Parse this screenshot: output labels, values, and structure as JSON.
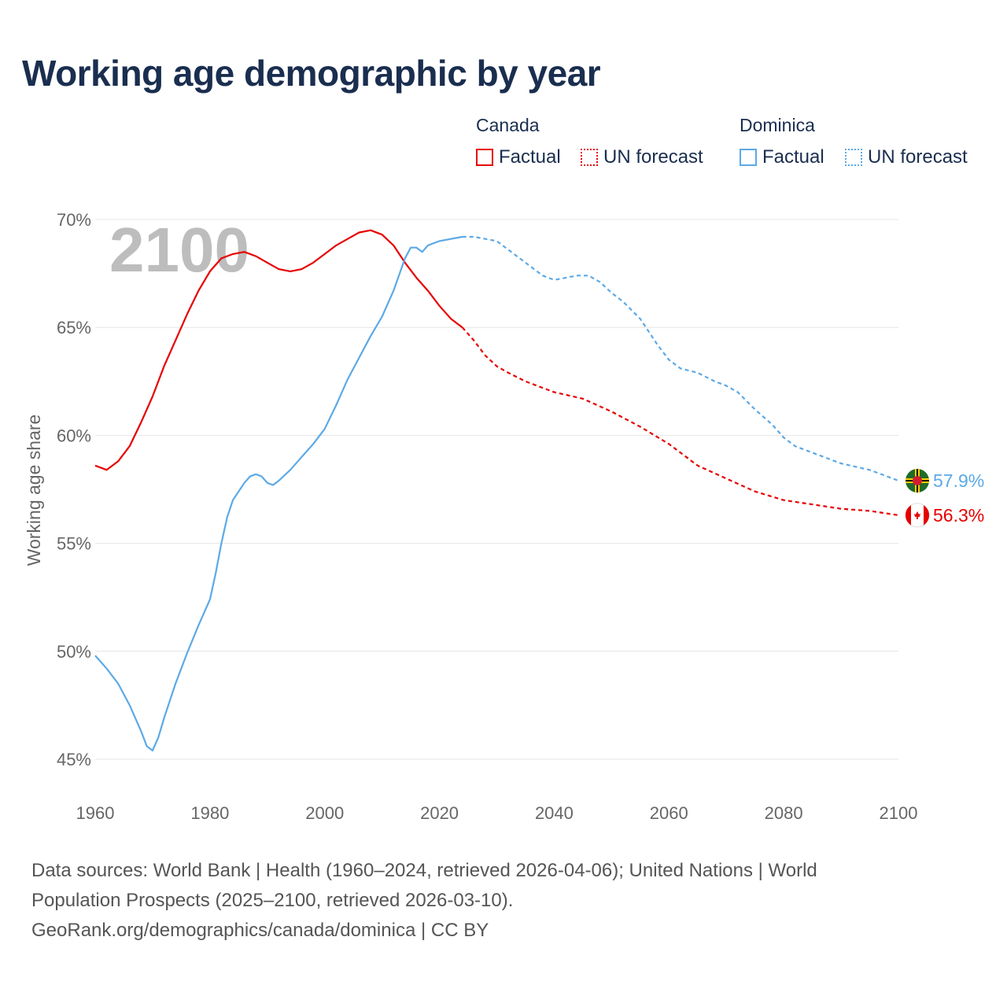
{
  "title": "Working age demographic by year",
  "legend": {
    "groups": [
      {
        "name": "Canada",
        "color": "#e60000",
        "items": [
          {
            "label": "Factual",
            "style": "solid"
          },
          {
            "label": "UN forecast",
            "style": "dotted"
          }
        ]
      },
      {
        "name": "Dominica",
        "color": "#5ca9e6",
        "items": [
          {
            "label": "Factual",
            "style": "solid"
          },
          {
            "label": "UN forecast",
            "style": "dotted"
          }
        ]
      }
    ]
  },
  "year_watermark": "2100",
  "footer": {
    "line1": "Data sources: World Bank | Health (1960–2024, retrieved 2026-04-06); United Nations | World",
    "line2": "Population Prospects (2025–2100, retrieved 2026-03-10).",
    "line3": "GeoRank.org/demographics/canada/dominica | CC BY"
  },
  "chart_data": {
    "type": "line",
    "title": "Working age demographic by year",
    "xlabel": "",
    "ylabel": "Working age share",
    "xlim": [
      1960,
      2100
    ],
    "ylim": [
      45,
      70
    ],
    "x_ticks": [
      1960,
      1980,
      2000,
      2020,
      2040,
      2060,
      2080,
      2100
    ],
    "x_tick_labels": [
      "1960",
      "1980",
      "2000",
      "2020",
      "2040",
      "2060",
      "2080",
      "2100"
    ],
    "y_ticks": [
      45,
      50,
      55,
      60,
      65,
      70
    ],
    "y_tick_labels": [
      "45%",
      "50%",
      "55%",
      "60%",
      "65%",
      "70%"
    ],
    "grid": true,
    "forecast_start": 2024,
    "series": [
      {
        "name": "Canada",
        "color": "#e60000",
        "end_label": "56.3%",
        "points": [
          [
            1960,
            58.6
          ],
          [
            1962,
            58.4
          ],
          [
            1964,
            58.8
          ],
          [
            1966,
            59.5
          ],
          [
            1968,
            60.6
          ],
          [
            1970,
            61.8
          ],
          [
            1972,
            63.2
          ],
          [
            1974,
            64.4
          ],
          [
            1976,
            65.6
          ],
          [
            1978,
            66.7
          ],
          [
            1980,
            67.6
          ],
          [
            1982,
            68.2
          ],
          [
            1984,
            68.4
          ],
          [
            1986,
            68.5
          ],
          [
            1988,
            68.3
          ],
          [
            1990,
            68.0
          ],
          [
            1992,
            67.7
          ],
          [
            1994,
            67.6
          ],
          [
            1996,
            67.7
          ],
          [
            1998,
            68.0
          ],
          [
            2000,
            68.4
          ],
          [
            2002,
            68.8
          ],
          [
            2004,
            69.1
          ],
          [
            2006,
            69.4
          ],
          [
            2008,
            69.5
          ],
          [
            2010,
            69.3
          ],
          [
            2012,
            68.8
          ],
          [
            2014,
            68.0
          ],
          [
            2016,
            67.3
          ],
          [
            2018,
            66.7
          ],
          [
            2020,
            66.0
          ],
          [
            2022,
            65.4
          ],
          [
            2024,
            65.0
          ],
          [
            2026,
            64.4
          ],
          [
            2028,
            63.7
          ],
          [
            2030,
            63.2
          ],
          [
            2032,
            62.9
          ],
          [
            2035,
            62.5
          ],
          [
            2040,
            62.0
          ],
          [
            2045,
            61.7
          ],
          [
            2050,
            61.1
          ],
          [
            2055,
            60.4
          ],
          [
            2060,
            59.6
          ],
          [
            2065,
            58.6
          ],
          [
            2070,
            58.0
          ],
          [
            2075,
            57.4
          ],
          [
            2080,
            57.0
          ],
          [
            2085,
            56.8
          ],
          [
            2090,
            56.6
          ],
          [
            2095,
            56.5
          ],
          [
            2100,
            56.3
          ]
        ]
      },
      {
        "name": "Dominica",
        "color": "#5ca9e6",
        "end_label": "57.9%",
        "points": [
          [
            1960,
            49.8
          ],
          [
            1962,
            49.2
          ],
          [
            1964,
            48.5
          ],
          [
            1966,
            47.5
          ],
          [
            1968,
            46.3
          ],
          [
            1969,
            45.6
          ],
          [
            1970,
            45.4
          ],
          [
            1971,
            46.0
          ],
          [
            1972,
            46.9
          ],
          [
            1974,
            48.5
          ],
          [
            1976,
            49.9
          ],
          [
            1978,
            51.2
          ],
          [
            1980,
            52.4
          ],
          [
            1981,
            53.6
          ],
          [
            1982,
            55.0
          ],
          [
            1983,
            56.2
          ],
          [
            1984,
            57.0
          ],
          [
            1986,
            57.8
          ],
          [
            1987,
            58.1
          ],
          [
            1988,
            58.2
          ],
          [
            1989,
            58.1
          ],
          [
            1990,
            57.8
          ],
          [
            1991,
            57.7
          ],
          [
            1992,
            57.9
          ],
          [
            1994,
            58.4
          ],
          [
            1996,
            59.0
          ],
          [
            1998,
            59.6
          ],
          [
            2000,
            60.3
          ],
          [
            2002,
            61.4
          ],
          [
            2004,
            62.6
          ],
          [
            2006,
            63.6
          ],
          [
            2008,
            64.6
          ],
          [
            2010,
            65.5
          ],
          [
            2012,
            66.7
          ],
          [
            2014,
            68.2
          ],
          [
            2015,
            68.7
          ],
          [
            2016,
            68.7
          ],
          [
            2017,
            68.5
          ],
          [
            2018,
            68.8
          ],
          [
            2020,
            69.0
          ],
          [
            2022,
            69.1
          ],
          [
            2024,
            69.2
          ],
          [
            2026,
            69.2
          ],
          [
            2028,
            69.1
          ],
          [
            2030,
            69.0
          ],
          [
            2032,
            68.6
          ],
          [
            2035,
            68.0
          ],
          [
            2038,
            67.4
          ],
          [
            2040,
            67.2
          ],
          [
            2042,
            67.3
          ],
          [
            2044,
            67.4
          ],
          [
            2046,
            67.4
          ],
          [
            2048,
            67.1
          ],
          [
            2050,
            66.6
          ],
          [
            2052,
            66.2
          ],
          [
            2055,
            65.4
          ],
          [
            2058,
            64.2
          ],
          [
            2060,
            63.5
          ],
          [
            2062,
            63.1
          ],
          [
            2065,
            62.9
          ],
          [
            2068,
            62.5
          ],
          [
            2070,
            62.3
          ],
          [
            2072,
            62.0
          ],
          [
            2075,
            61.2
          ],
          [
            2078,
            60.5
          ],
          [
            2080,
            59.9
          ],
          [
            2082,
            59.5
          ],
          [
            2085,
            59.2
          ],
          [
            2090,
            58.7
          ],
          [
            2095,
            58.4
          ],
          [
            2100,
            57.9
          ]
        ]
      }
    ]
  }
}
